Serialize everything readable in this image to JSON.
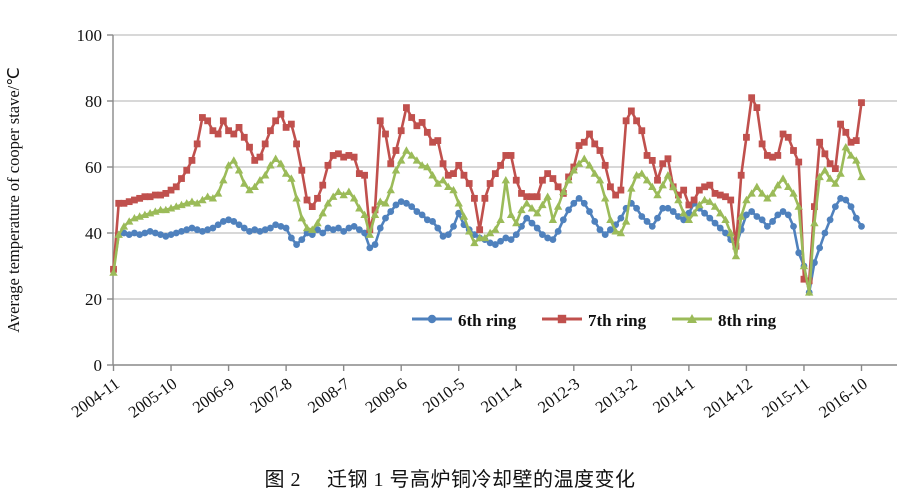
{
  "figure": {
    "caption_prefix": "图 2",
    "caption_text": "迁钢 1 号高炉铜冷却壁的温度变化"
  },
  "chart_data": {
    "type": "line",
    "title": "图 2 迁钢 1 号高炉铜冷却壁的温度变化",
    "xlabel": "",
    "ylabel": "Average temperature of cooper stave/℃",
    "ylim": [
      0,
      100
    ],
    "yticks": [
      0,
      20,
      40,
      60,
      80,
      100
    ],
    "grid": "horizontal-only",
    "legend_position": "inside-bottom",
    "x_months_total": 144,
    "xtick_labels": [
      "2004-11",
      "2005-10",
      "2006-9",
      "2007-8",
      "2008-7",
      "2009-6",
      "2010-5",
      "2011-4",
      "2012-3",
      "2013-2",
      "2014-1",
      "2014-12",
      "2015-11",
      "2016-10"
    ],
    "xtick_month_indices": [
      0,
      11,
      22,
      33,
      44,
      55,
      66,
      77,
      88,
      99,
      110,
      121,
      132,
      143
    ],
    "axis_color": "#898989",
    "grid_color": "#c0c0c0",
    "series": [
      {
        "name": "6th ring",
        "color": "#4F81BD",
        "marker": "circle",
        "values": [
          29,
          39.5,
          40,
          39.5,
          40,
          39.5,
          40,
          40.5,
          40,
          39.5,
          39,
          39.5,
          40,
          40.5,
          41,
          41.5,
          41,
          40.5,
          41,
          41.5,
          42.5,
          43.5,
          44,
          43.5,
          42.5,
          41.5,
          40.5,
          41,
          40.5,
          41,
          41.5,
          42.5,
          42,
          41.5,
          38.5,
          36.5,
          38,
          40,
          39.5,
          41,
          40,
          41.5,
          41,
          41.5,
          40.5,
          41.5,
          42,
          41,
          40,
          35.5,
          36.5,
          41.5,
          44.5,
          46.5,
          48.5,
          49.5,
          49,
          48,
          46.5,
          45.5,
          44,
          43.5,
          41.5,
          39,
          39.5,
          42,
          46,
          42.5,
          41,
          39.5,
          38.5,
          38,
          37,
          36.5,
          37.5,
          38.5,
          38,
          39.5,
          42,
          44.5,
          43,
          41.5,
          39.5,
          38.5,
          38,
          40.5,
          44,
          47,
          49,
          50.5,
          49,
          46.5,
          43.5,
          41,
          39.5,
          41,
          42.5,
          44.5,
          47.5,
          49,
          47.5,
          45,
          43.5,
          42,
          44.5,
          47.5,
          47.5,
          46.5,
          45,
          44,
          46,
          49,
          47.5,
          46,
          44.5,
          43,
          41.5,
          40,
          38,
          36,
          41,
          45.5,
          46.5,
          45,
          44,
          42,
          43.5,
          45.5,
          46.5,
          45.5,
          42,
          34,
          30,
          22,
          31,
          35.5,
          40,
          44,
          48,
          50.5,
          50,
          48,
          44.5,
          42
        ]
      },
      {
        "name": "7th ring",
        "color": "#C0504D",
        "marker": "square",
        "values": [
          29,
          49,
          49,
          49.5,
          50,
          50.5,
          51,
          51,
          51.5,
          51.5,
          52,
          53,
          54,
          56.5,
          59,
          62,
          67,
          75,
          74,
          71,
          70,
          74,
          71,
          70,
          72,
          69,
          66,
          62,
          63,
          67,
          71,
          74,
          76,
          72,
          73,
          67,
          59,
          50,
          48,
          50.5,
          54.5,
          60.5,
          63.5,
          64,
          63,
          63.5,
          63,
          58,
          57.5,
          41,
          47,
          74,
          70,
          61,
          65,
          71,
          78,
          75,
          72.5,
          73.5,
          70.5,
          67.5,
          68,
          61,
          57.5,
          58,
          60.5,
          57.5,
          55,
          50.5,
          41,
          50.5,
          55,
          58,
          60.5,
          63.5,
          63.5,
          56,
          52,
          51,
          51,
          51,
          56,
          58,
          56.5,
          54,
          52,
          57,
          60,
          66.5,
          67.5,
          70,
          67,
          65,
          60.5,
          54,
          51.5,
          53,
          74,
          77,
          74,
          71,
          63.5,
          62,
          56,
          61,
          62.5,
          54,
          51.5,
          53,
          48.5,
          50,
          53,
          54,
          54.5,
          52,
          51.5,
          51,
          50,
          36,
          57.5,
          69,
          81,
          78,
          67,
          63.5,
          63,
          63.5,
          70,
          69,
          65,
          61.5,
          26,
          25.5,
          48,
          67.5,
          64,
          61,
          59.5,
          73,
          70.5,
          67.5,
          68,
          79.5
        ]
      },
      {
        "name": "8th ring",
        "color": "#9BBB59",
        "marker": "triangle",
        "values": [
          28,
          39.5,
          42,
          43.5,
          44.5,
          45,
          45.5,
          46,
          46.5,
          47,
          47,
          47.5,
          48,
          48.5,
          49,
          49.5,
          49,
          50,
          51,
          50.5,
          52,
          56,
          60.5,
          62,
          59,
          55,
          53,
          54,
          56,
          57.5,
          60.5,
          62.5,
          61,
          58,
          56.5,
          50.5,
          44.5,
          41.5,
          41,
          43,
          46,
          49,
          51,
          52.5,
          51.5,
          52.5,
          50.5,
          47.5,
          45.5,
          39.5,
          45.5,
          49.5,
          49,
          53,
          59,
          62,
          65,
          63.5,
          62,
          60.5,
          60,
          57.5,
          55,
          56,
          54,
          53,
          49,
          45,
          40.5,
          37,
          38.5,
          38.5,
          40,
          41,
          44,
          56,
          45.5,
          43,
          47,
          49,
          47.5,
          46,
          48.5,
          51,
          44,
          48,
          52.5,
          56,
          59,
          61,
          62.5,
          60.5,
          58,
          56,
          50.5,
          44,
          40.5,
          40,
          43.5,
          53.5,
          57.5,
          58,
          56,
          54,
          51.5,
          54.5,
          57.5,
          54,
          50,
          46,
          44,
          46,
          48.5,
          50,
          49.5,
          48,
          46,
          44,
          40,
          33,
          45,
          50,
          52,
          54,
          52,
          50.5,
          52,
          54.5,
          56.5,
          54,
          52,
          48,
          30,
          22,
          43,
          57,
          59,
          56.5,
          55,
          58,
          66,
          63.5,
          62,
          57
        ]
      }
    ]
  }
}
